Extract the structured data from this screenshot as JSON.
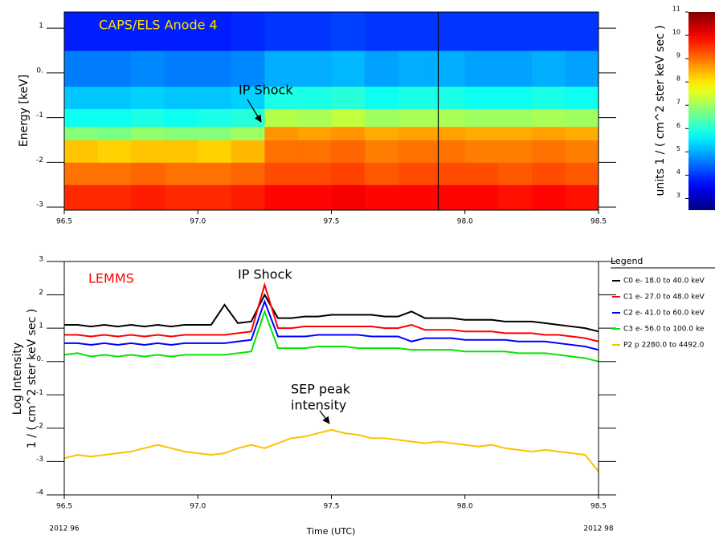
{
  "chart_data": [
    {
      "type": "heatmap",
      "ylabel": "Energy [keV]",
      "annotation_label": "CAPS/ELS Anode 4",
      "annotation_shock": "IP Shock",
      "xlim": [
        96.5,
        98.5
      ],
      "xticks": [
        96.5,
        {
          "value": 97,
          "label": "97.0"
        },
        97.5,
        {
          "value": 98,
          "label": "98.0"
        },
        98.5
      ],
      "ylim": [
        -3.07,
        1.36
      ],
      "yticks": [
        -3,
        -2,
        -1,
        {
          "value": 0,
          "label": "0."
        },
        1
      ],
      "x_edges": [
        96.5,
        96.625,
        96.75,
        96.875,
        97.0,
        97.125,
        97.25,
        97.375,
        97.5,
        97.625,
        97.75,
        97.875,
        98.0,
        98.125,
        98.25,
        98.375,
        98.5
      ],
      "y_edges": [
        -3.07,
        -2.5,
        -2.0,
        -1.5,
        -1.2,
        -0.8,
        -0.3,
        0.5,
        1.36
      ],
      "z": [
        [
          9.6,
          9.6,
          9.7,
          9.6,
          9.6,
          9.7,
          9.9,
          9.9,
          10.0,
          9.9,
          9.9,
          9.9,
          9.9,
          9.8,
          9.9,
          9.8
        ],
        [
          9.0,
          9.0,
          9.1,
          9.0,
          9.0,
          9.1,
          9.3,
          9.3,
          9.4,
          9.2,
          9.3,
          9.3,
          9.3,
          9.2,
          9.3,
          9.2
        ],
        [
          8.3,
          8.2,
          8.3,
          8.3,
          8.2,
          8.4,
          9.0,
          9.0,
          9.1,
          8.9,
          9.0,
          9.0,
          8.9,
          8.9,
          9.0,
          8.9
        ],
        [
          6.8,
          6.7,
          6.9,
          6.8,
          6.8,
          7.0,
          8.7,
          8.6,
          8.7,
          8.5,
          8.6,
          8.6,
          8.5,
          8.5,
          8.6,
          8.5
        ],
        [
          5.8,
          5.8,
          5.9,
          5.8,
          5.9,
          6.0,
          7.2,
          7.1,
          7.3,
          7.0,
          7.1,
          7.1,
          7.0,
          7.0,
          7.1,
          7.0
        ],
        [
          5.2,
          5.2,
          5.3,
          5.2,
          5.2,
          5.3,
          5.9,
          5.9,
          6.0,
          5.8,
          5.9,
          5.9,
          5.8,
          5.8,
          5.9,
          5.8
        ],
        [
          4.6,
          4.6,
          4.7,
          4.6,
          4.6,
          4.7,
          5.0,
          5.0,
          5.1,
          4.9,
          5.0,
          5.0,
          4.9,
          4.9,
          5.0,
          4.9
        ],
        [
          3.8,
          3.8,
          3.8,
          3.8,
          3.8,
          3.9,
          4.0,
          4.0,
          4.1,
          4.0,
          4.0,
          4.0,
          4.0,
          4.0,
          4.0,
          4.0
        ]
      ],
      "colorbar": {
        "label": "units 1 / ( cm^2 ster keV sec )",
        "clim": [
          2.5,
          11
        ],
        "ticks": [
          3,
          4,
          5,
          6,
          7,
          8,
          9,
          10,
          11
        ]
      }
    },
    {
      "type": "line",
      "ylabel_lines": [
        "Log Intensity",
        "1 / ( cm^2 ster keV sec )"
      ],
      "xlabel": "Time (UTC)",
      "date_labels": [
        "2012 96",
        "2012 98"
      ],
      "annotation_label": "LEMMS",
      "annotation_shock": "IP Shock",
      "annotation_sep": [
        "SEP peak",
        "intensity"
      ],
      "legend_title": "Legend",
      "legend": "right",
      "xlim": [
        96.5,
        98.5
      ],
      "xticks": [
        96.5,
        {
          "value": 97,
          "label": "97.0"
        },
        97.5,
        {
          "value": 98,
          "label": "98.0"
        },
        98.5
      ],
      "ylim": [
        -4,
        3
      ],
      "yticks": [
        -4,
        -3,
        -2,
        -1,
        {
          "value": 0,
          "label": "0."
        },
        1,
        2,
        3
      ],
      "x": [
        96.5,
        96.55,
        96.6,
        96.65,
        96.7,
        96.75,
        96.8,
        96.85,
        96.9,
        96.95,
        97.0,
        97.05,
        97.1,
        97.15,
        97.2,
        97.25,
        97.3,
        97.35,
        97.4,
        97.45,
        97.5,
        97.55,
        97.6,
        97.65,
        97.7,
        97.75,
        97.8,
        97.85,
        97.9,
        97.95,
        98.0,
        98.05,
        98.1,
        98.15,
        98.2,
        98.25,
        98.3,
        98.35,
        98.4,
        98.45,
        98.5
      ],
      "series": [
        {
          "name": "C0 e- 18.0 to 40.0 keV",
          "color": "#000000",
          "values": [
            1.1,
            1.1,
            1.05,
            1.1,
            1.05,
            1.1,
            1.05,
            1.1,
            1.05,
            1.1,
            1.1,
            1.1,
            1.7,
            1.15,
            1.2,
            2.0,
            1.3,
            1.3,
            1.35,
            1.35,
            1.4,
            1.4,
            1.4,
            1.4,
            1.35,
            1.35,
            1.5,
            1.3,
            1.3,
            1.3,
            1.25,
            1.25,
            1.25,
            1.2,
            1.2,
            1.2,
            1.15,
            1.1,
            1.05,
            1.0,
            0.9
          ]
        },
        {
          "name": "C1 e- 27.0 to 48.0 keV",
          "color": "#ff0000",
          "values": [
            0.8,
            0.8,
            0.75,
            0.8,
            0.75,
            0.8,
            0.75,
            0.8,
            0.75,
            0.8,
            0.8,
            0.8,
            0.8,
            0.85,
            0.9,
            2.3,
            1.0,
            1.0,
            1.05,
            1.05,
            1.05,
            1.05,
            1.05,
            1.05,
            1.0,
            1.0,
            1.1,
            0.95,
            0.95,
            0.95,
            0.9,
            0.9,
            0.9,
            0.85,
            0.85,
            0.85,
            0.8,
            0.8,
            0.75,
            0.7,
            0.6
          ]
        },
        {
          "name": "C2 e- 41.0 to 60.0 keV",
          "color": "#0000ff",
          "values": [
            0.55,
            0.55,
            0.5,
            0.55,
            0.5,
            0.55,
            0.5,
            0.55,
            0.5,
            0.55,
            0.55,
            0.55,
            0.55,
            0.6,
            0.65,
            1.8,
            0.75,
            0.75,
            0.75,
            0.8,
            0.8,
            0.8,
            0.8,
            0.75,
            0.75,
            0.75,
            0.6,
            0.7,
            0.7,
            0.7,
            0.65,
            0.65,
            0.65,
            0.65,
            0.6,
            0.6,
            0.6,
            0.55,
            0.5,
            0.45,
            0.35
          ]
        },
        {
          "name": "C3 e- 56.0 to 100.0 ke",
          "color": "#00e600",
          "values": [
            0.2,
            0.25,
            0.15,
            0.2,
            0.15,
            0.2,
            0.15,
            0.2,
            0.15,
            0.2,
            0.2,
            0.2,
            0.2,
            0.25,
            0.3,
            1.5,
            0.4,
            0.4,
            0.4,
            0.45,
            0.45,
            0.45,
            0.4,
            0.4,
            0.4,
            0.4,
            0.35,
            0.35,
            0.35,
            0.35,
            0.3,
            0.3,
            0.3,
            0.3,
            0.25,
            0.25,
            0.25,
            0.2,
            0.15,
            0.1,
            0.0
          ]
        },
        {
          "name": "P2 p 2280.0 to 4492.0",
          "color": "#ffc000",
          "values": [
            -2.9,
            -2.8,
            -2.85,
            -2.8,
            -2.75,
            -2.7,
            -2.6,
            -2.5,
            -2.6,
            -2.7,
            -2.75,
            -2.8,
            -2.75,
            -2.6,
            -2.5,
            -2.6,
            -2.45,
            -2.3,
            -2.25,
            -2.15,
            -2.05,
            -2.15,
            -2.2,
            -2.3,
            -2.3,
            -2.35,
            -2.4,
            -2.45,
            -2.4,
            -2.45,
            -2.5,
            -2.55,
            -2.5,
            -2.6,
            -2.65,
            -2.7,
            -2.65,
            -2.7,
            -2.75,
            -2.8,
            -3.3
          ]
        }
      ]
    }
  ]
}
